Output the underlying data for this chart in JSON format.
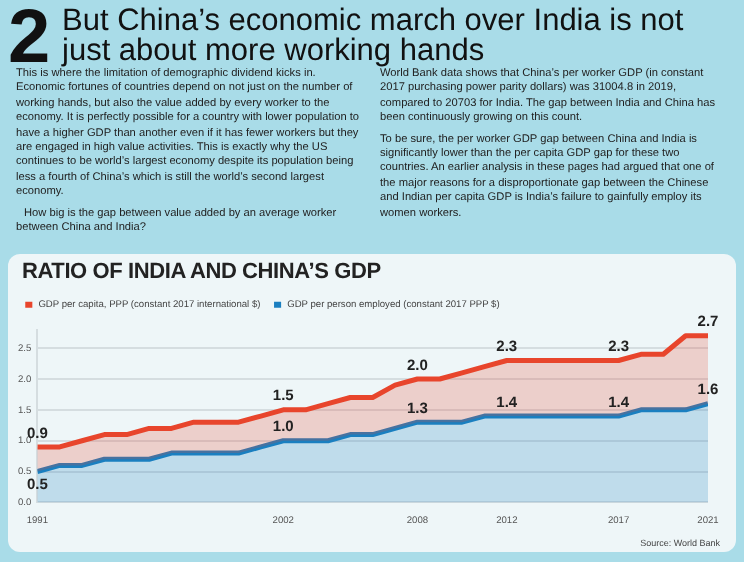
{
  "chart_data": {
    "type": "area",
    "title": "But China’s economic march over India is not just about more working hands",
    "subtitle": "RATIO OF INDIA AND CHINA’S GDP",
    "annotations": [
      "2",
      "This is where the limitation of demographic dividend kicks in. Economic fortunes of countries depend on not just on the number of working hands, but also the value added by every worker to the economy. It is perfectly possible for a country with lower population to have a higher GDP than another even if it has fewer workers but they are engaged in high value activities. This is exactly why the US continues to be world’s largest economy despite its population being less a fourth of China’s which is still the world’s second largest economy.",
      "How big is the gap between value added by an average worker between China and India?",
      "World Bank data shows that China’s per worker GDP (in constant 2017 purchasing power parity dollars) was 31004.8 in 2019, compared to 20703 for India. The gap between India and China has been continuously growing on this count.",
      "To be sure, the per worker GDP gap between China and India is significantly lower than the per capita GDP gap for these two countries. An earlier analysis in these pages had argued that one of the major reasons for a disproportionate gap between the Chinese and Indian per capita GDP is India’s failure to gainfully employ its women workers.",
      "Source: World Bank"
    ],
    "x": [
      1991,
      1992,
      1993,
      1994,
      1995,
      1996,
      1997,
      1998,
      1999,
      2000,
      2001,
      2002,
      2003,
      2004,
      2005,
      2006,
      2007,
      2008,
      2009,
      2010,
      2011,
      2012,
      2013,
      2014,
      2015,
      2016,
      2017,
      2018,
      2019,
      2020,
      2021
    ],
    "xlim": [
      1991,
      2021
    ],
    "xticks": [
      1991,
      2002,
      2008,
      2012,
      2017,
      2021
    ],
    "ylim": [
      0,
      2.8
    ],
    "yticks": [
      {
        "value": 0,
        "label": "0.0"
      },
      {
        "value": 0.5,
        "label": "0.5"
      },
      {
        "value": 1,
        "label": "1.0"
      },
      {
        "value": 1.5,
        "label": "1.5"
      },
      {
        "value": 2,
        "label": "2.0"
      },
      {
        "value": 2.5,
        "label": "2.5"
      }
    ],
    "series": [
      {
        "name": "GDP per capita, PPP (constant 2017 international $)",
        "color": "#e8452c",
        "values": [
          0.9,
          0.9,
          1.0,
          1.1,
          1.1,
          1.2,
          1.2,
          1.3,
          1.3,
          1.3,
          1.4,
          1.5,
          1.5,
          1.6,
          1.7,
          1.7,
          1.9,
          2.0,
          2.0,
          2.1,
          2.2,
          2.3,
          2.3,
          2.3,
          2.3,
          2.3,
          2.3,
          2.4,
          2.4,
          2.7,
          2.7
        ],
        "value_labels": [
          "0.9",
          null,
          null,
          null,
          null,
          null,
          null,
          null,
          null,
          null,
          null,
          "1.5",
          null,
          null,
          null,
          null,
          null,
          "2.0",
          null,
          null,
          null,
          "2.3",
          null,
          null,
          null,
          null,
          "2.3",
          null,
          null,
          null,
          "2.7"
        ]
      },
      {
        "name": "GDP per person employed (constant 2017 PPP $)",
        "color": "#1a7fc0",
        "values": [
          0.5,
          0.6,
          0.6,
          0.7,
          0.7,
          0.7,
          0.8,
          0.8,
          0.8,
          0.8,
          0.9,
          1.0,
          1.0,
          1.0,
          1.1,
          1.1,
          1.2,
          1.3,
          1.3,
          1.3,
          1.4,
          1.4,
          1.4,
          1.4,
          1.4,
          1.4,
          1.4,
          1.5,
          1.5,
          1.5,
          1.6
        ],
        "value_labels": [
          "0.5",
          null,
          null,
          null,
          null,
          null,
          null,
          null,
          null,
          null,
          null,
          "1.0",
          null,
          null,
          null,
          null,
          null,
          "1.3",
          null,
          null,
          null,
          "1.4",
          null,
          null,
          null,
          null,
          "1.4",
          null,
          null,
          null,
          "1.6"
        ]
      }
    ],
    "grid": "y",
    "legend": "top left"
  }
}
